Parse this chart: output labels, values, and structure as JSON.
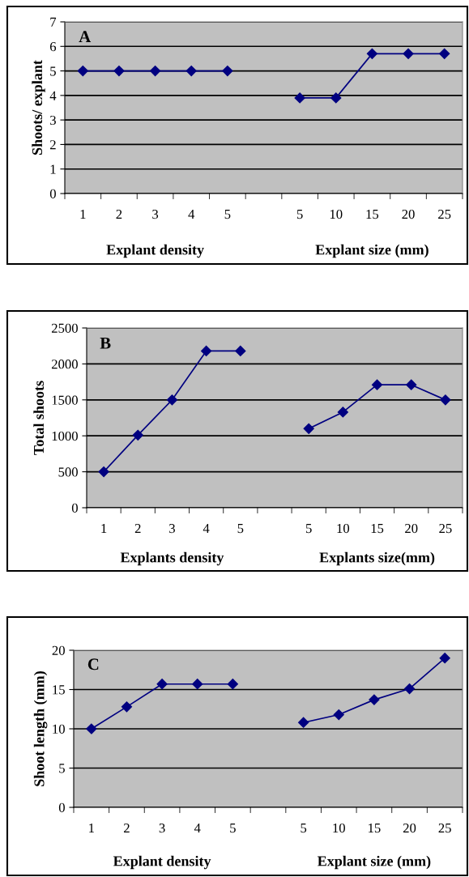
{
  "chart_data": [
    {
      "type": "line",
      "title": "A",
      "ylabel": "Shoots/ explant",
      "categories": [
        "1",
        "2",
        "3",
        "4",
        "5",
        null,
        "5",
        "10",
        "15",
        "20",
        "25"
      ],
      "series": [
        {
          "color": "#000080",
          "values": [
            5,
            5,
            5,
            5,
            5,
            null,
            3.9,
            3.9,
            5.7,
            5.7,
            5.7
          ]
        }
      ],
      "ylim": [
        0,
        7
      ],
      "yticks": [
        0,
        1,
        2,
        3,
        4,
        5,
        6,
        7
      ],
      "grid": "y",
      "marker": "diamond",
      "line_style": "solid",
      "annotations": [
        "Explant density",
        "Explant size (mm)"
      ]
    },
    {
      "type": "line",
      "title": "B",
      "ylabel": "Total shoots",
      "categories": [
        "1",
        "2",
        "3",
        "4",
        "5",
        null,
        "5",
        "10",
        "15",
        "20",
        "25"
      ],
      "series": [
        {
          "color": "#000080",
          "values": [
            500,
            1010,
            1500,
            2180,
            2180,
            null,
            1100,
            1330,
            1710,
            1710,
            1500
          ]
        }
      ],
      "ylim": [
        0,
        2500
      ],
      "yticks": [
        0,
        500,
        1000,
        1500,
        2000,
        2500
      ],
      "grid": "y",
      "marker": "diamond",
      "line_style": "solid",
      "annotations": [
        "Explants density",
        "Explants size(mm)"
      ]
    },
    {
      "type": "line",
      "title": "C",
      "ylabel": "Shoot length (mm)",
      "categories": [
        "1",
        "2",
        "3",
        "4",
        "5",
        null,
        "5",
        "10",
        "15",
        "20",
        "25"
      ],
      "series": [
        {
          "color": "#000080",
          "values": [
            10,
            12.8,
            15.7,
            15.7,
            15.7,
            null,
            10.8,
            11.8,
            13.7,
            15.1,
            19
          ]
        }
      ],
      "ylim": [
        0,
        20
      ],
      "yticks": [
        0,
        5,
        10,
        15,
        20
      ],
      "grid": "y",
      "marker": "diamond",
      "line_style": "solid",
      "annotations": [
        "Explant density",
        "Explant size (mm)"
      ]
    }
  ]
}
